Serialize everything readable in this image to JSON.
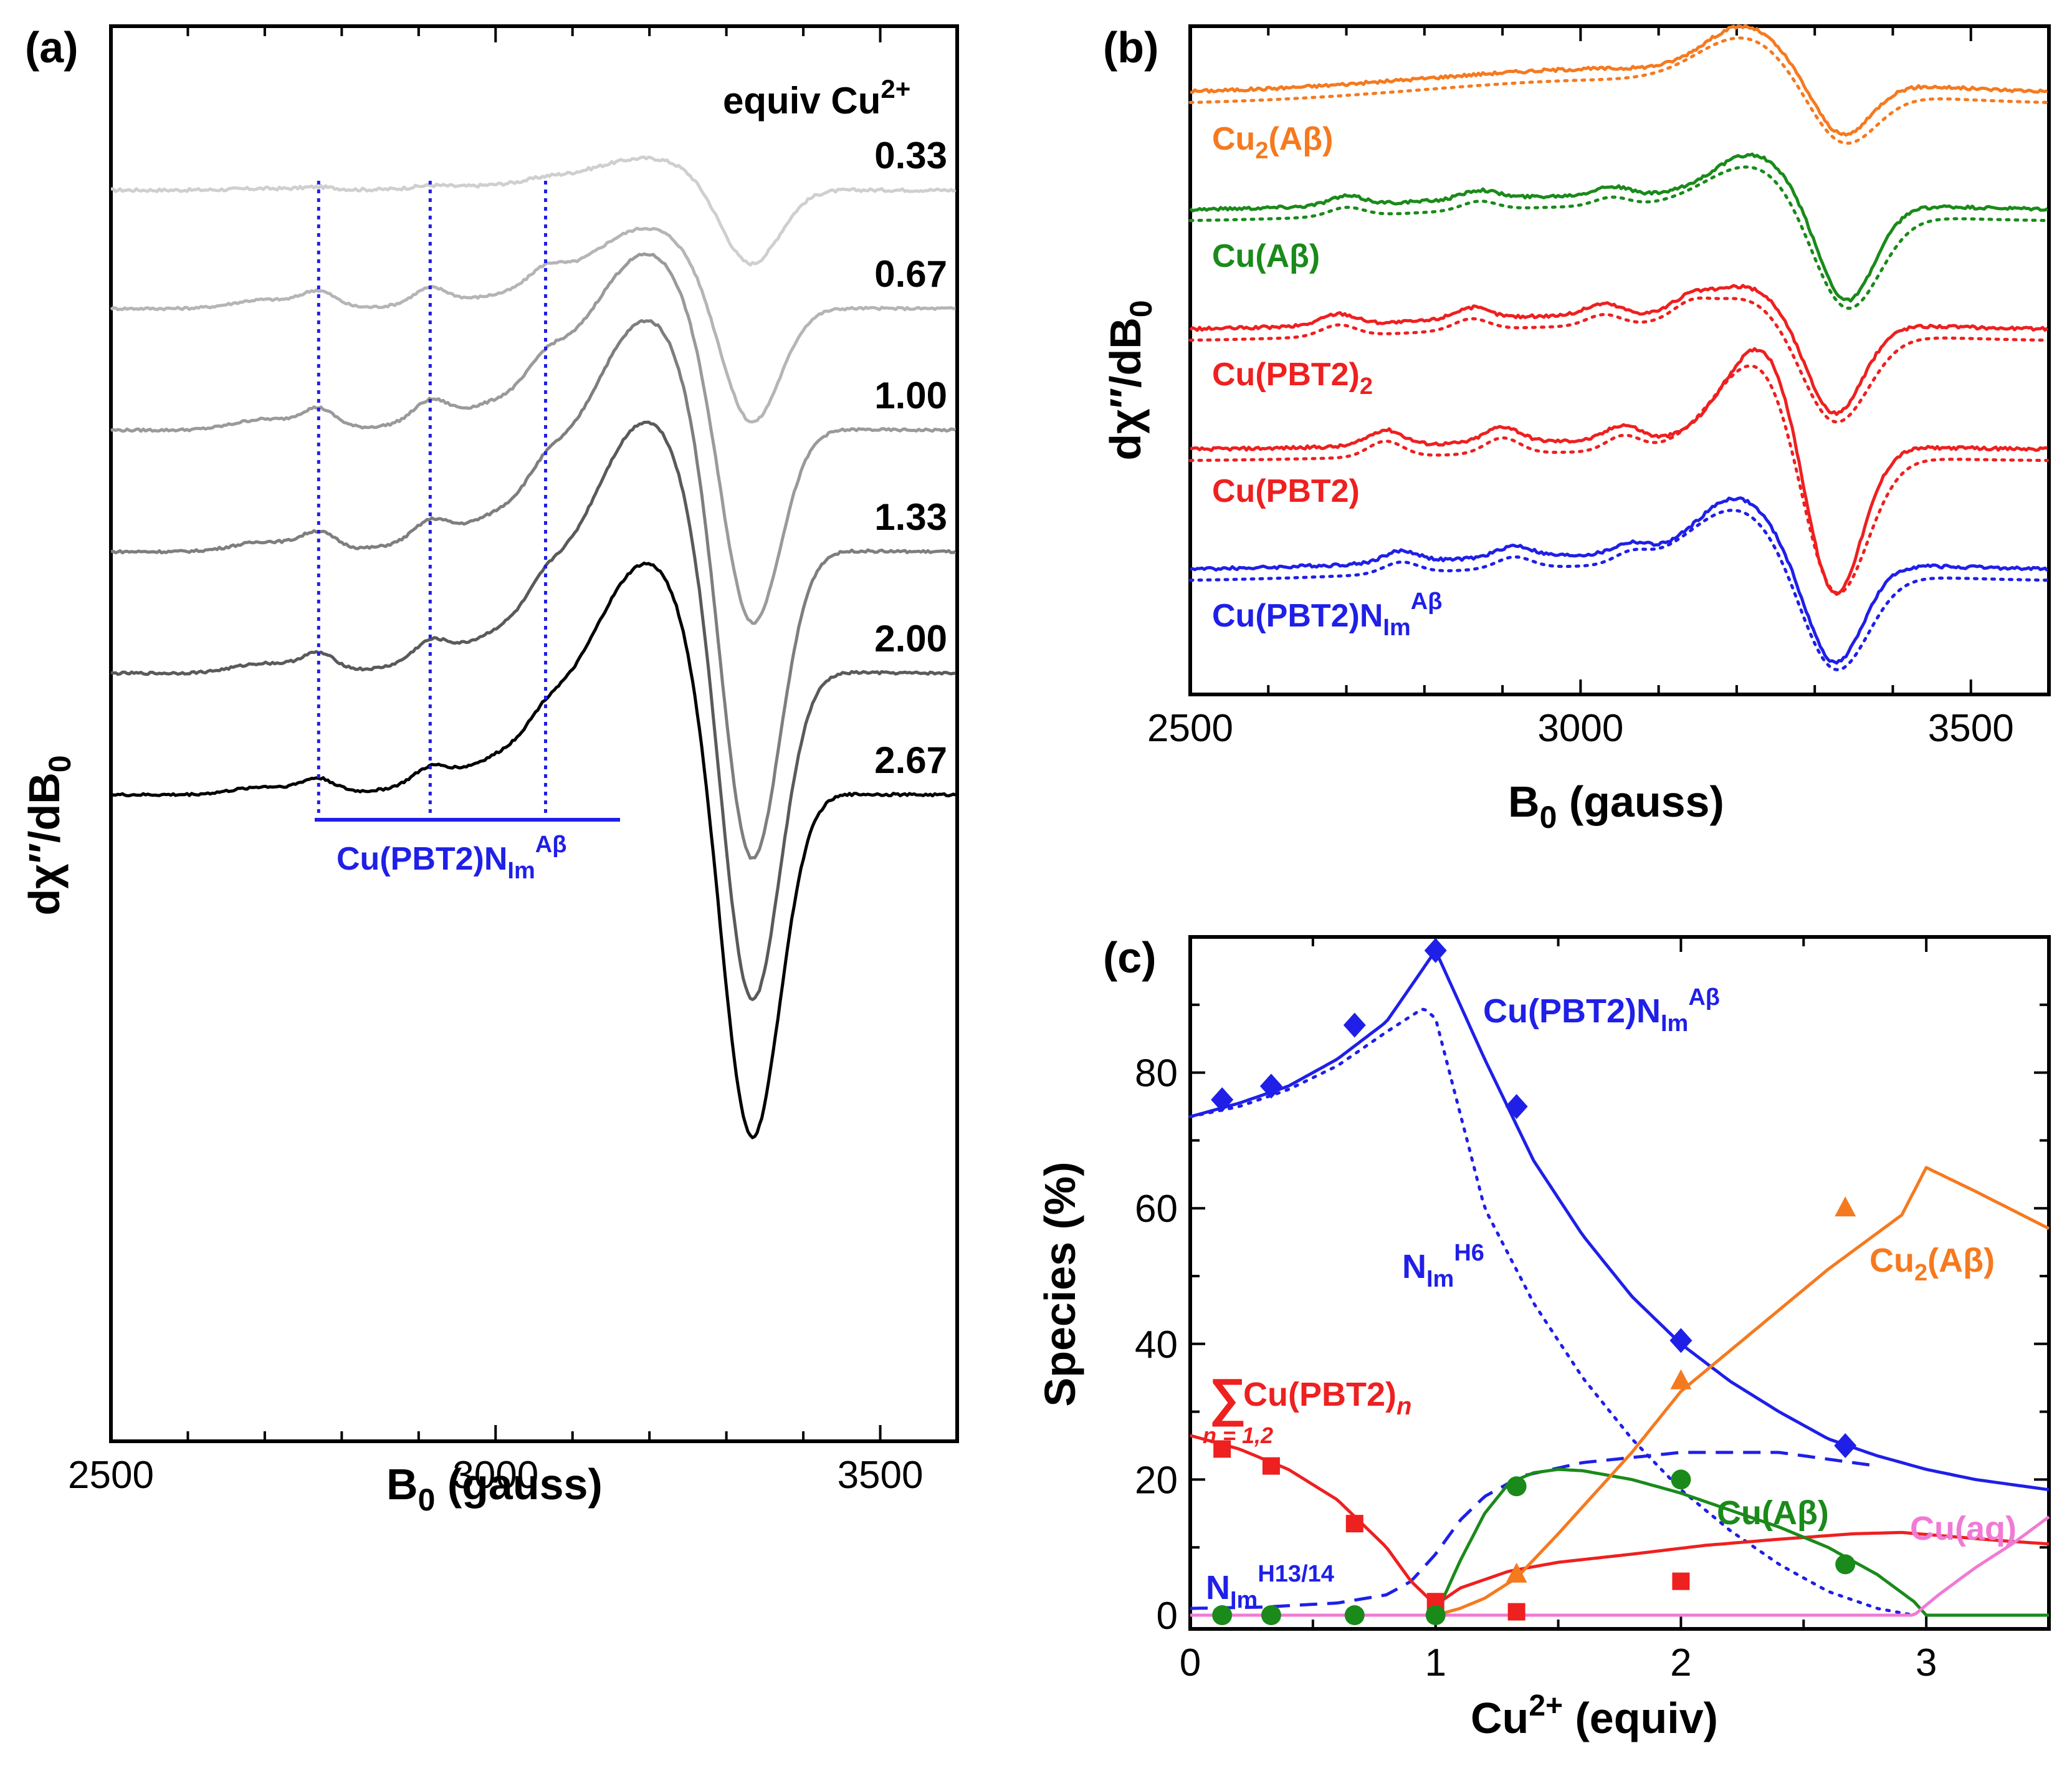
{
  "panels": {
    "a": {
      "panel_label": "(a)",
      "xlabel": "B",
      "xlabel_sub": "0",
      "xlabel_rest": " (gauss)",
      "ylabel": "dχ″/dB",
      "ylabel_sub": "0",
      "equiv_header": "equiv Cu",
      "equiv_header_sup": "2+",
      "species_label": "Cu(PBT2)N",
      "species_label_sub": "Im",
      "species_label_sup": "Aβ"
    },
    "b": {
      "panel_label": "(b)",
      "xlabel": "B",
      "xlabel_sub": "0",
      "xlabel_rest": " (gauss)",
      "ylabel": "dχ″/dB",
      "ylabel_sub": "0"
    },
    "c": {
      "panel_label": "(c)",
      "xlabel": "Cu",
      "xlabel_sup": "2+",
      "xlabel_rest": " (equiv)",
      "ylabel": "Species (%)",
      "sum_symbol": "∑",
      "sum_main": "Cu(PBT2)",
      "sum_sub_n": "n",
      "sum_limits": "n = 1,2",
      "nim_h6": "N",
      "nim_h6_sub": "Im",
      "nim_h6_sup": "H6",
      "nim_h13": "N",
      "nim_h13_sub": "Im",
      "nim_h13_sup": "H13/14",
      "cupbt2nim": "Cu(PBT2)N",
      "cupbt2nim_sub": "Im",
      "cupbt2nim_sup": "Aβ",
      "cu2ab": "Cu",
      "cu2ab_sub": "2",
      "cu2ab_rest": "(Aβ)",
      "cuab": "Cu(Aβ)",
      "cuaq": "Cu(aq)"
    }
  },
  "colors": {
    "blue": "#1f1fe8",
    "red": "#ee2020",
    "green": "#1a8a1a",
    "orange": "#f57a1f",
    "pink": "#f07ad6"
  },
  "chart_data": [
    {
      "id": "a",
      "type": "line",
      "title": "",
      "xlabel": "B0 (gauss)",
      "ylabel": "dχ″/dB0",
      "xlim": [
        2500,
        3600
      ],
      "xticks": [
        2500,
        3000,
        3500
      ],
      "series_labels": [
        "0.33",
        "0.67",
        "1.00",
        "1.33",
        "2.00",
        "2.67"
      ],
      "series_colors": [
        "#cfcfcf",
        "#b5b5b5",
        "#9a9a9a",
        "#7e7e7e",
        "#5a5a5a",
        "#000000"
      ],
      "marker_fields": [
        2770,
        2915,
        3065
      ],
      "series_shape": [
        {
          "name": "0.33",
          "baseline": 0.8,
          "hf": 0.12,
          "peak": 0.5,
          "trough": 1.6,
          "tail": 0.8
        },
        {
          "name": "0.67",
          "baseline": 1.54,
          "hf": 0.9,
          "peak": 1.6,
          "trough": 3.3,
          "tail": 1.54
        },
        {
          "name": "1.00",
          "baseline": 2.33,
          "hf": 1.1,
          "peak": 3.5,
          "trough": 5.8,
          "tail": 2.33
        },
        {
          "name": "1.33",
          "baseline": 3.09,
          "hf": 1.0,
          "peak": 4.6,
          "trough": 9.0,
          "tail": 3.09
        },
        {
          "name": "2.00",
          "baseline": 3.84,
          "hf": 1.0,
          "peak": 5.0,
          "trough": 9.6,
          "tail": 3.84
        },
        {
          "name": "2.67",
          "baseline": 4.61,
          "hf": 0.8,
          "peak": 4.6,
          "trough": 9.9,
          "tail": 4.61
        }
      ]
    },
    {
      "id": "b",
      "type": "line",
      "title": "",
      "xlabel": "B0 (gauss)",
      "ylabel": "dχ″/dB0",
      "xlim": [
        2500,
        3600
      ],
      "xticks": [
        2500,
        3000,
        3500
      ],
      "series": [
        {
          "name": "Cu2(Aβ)",
          "color": "#f57a1f",
          "style": "solid + dotted fit"
        },
        {
          "name": "Cu(Aβ)",
          "color": "#1a8a1a",
          "style": "solid + dotted fit"
        },
        {
          "name": "Cu(PBT2)2",
          "color": "#ee2020",
          "style": "solid + dotted fit"
        },
        {
          "name": "Cu(PBT2)",
          "color": "#ee2020",
          "style": "solid + dotted fit"
        },
        {
          "name": "Cu(PBT2)NImAβ",
          "color": "#1f1fe8",
          "style": "solid + dotted fit"
        }
      ]
    },
    {
      "id": "c",
      "type": "scatter",
      "title": "",
      "xlabel": "Cu2+ (equiv)",
      "ylabel": "Species (%)",
      "xlim": [
        0,
        3.5
      ],
      "ylim": [
        0,
        100
      ],
      "xticks": [
        0,
        1,
        2,
        3
      ],
      "yticks": [
        0,
        20,
        40,
        60,
        80
      ],
      "points": [
        {
          "name": "Cu(PBT2)NImAβ",
          "marker": "diamond",
          "color": "#1f1fe8",
          "x": [
            0.13,
            0.33,
            0.67,
            1.0,
            1.33,
            2.0,
            2.67
          ],
          "y": [
            76,
            78,
            87,
            98,
            75,
            40.5,
            25
          ]
        },
        {
          "name": "ΣCu(PBT2)n",
          "marker": "square",
          "color": "#ee2020",
          "x": [
            0.13,
            0.33,
            0.67,
            1.0,
            1.33,
            2.0
          ],
          "y": [
            24.5,
            22,
            13.5,
            2,
            0.5,
            5
          ]
        },
        {
          "name": "Cu(Aβ)",
          "marker": "circle",
          "color": "#1a8a1a",
          "x": [
            0.13,
            0.33,
            0.67,
            1.0,
            1.33,
            2.0,
            2.67
          ],
          "y": [
            0,
            0,
            0,
            0,
            19,
            20,
            7.5
          ]
        },
        {
          "name": "Cu2(Aβ)",
          "marker": "triangle",
          "color": "#f57a1f",
          "x": [
            1.33,
            2.0,
            2.67
          ],
          "y": [
            6,
            34.5,
            60
          ]
        }
      ],
      "curves": [
        {
          "name": "Cu(PBT2)NImAβ fit",
          "color": "#1f1fe8",
          "style": "solid",
          "x": [
            0,
            0.2,
            0.4,
            0.6,
            0.8,
            1.0,
            1.2,
            1.4,
            1.6,
            1.8,
            2.0,
            2.2,
            2.4,
            2.6,
            2.8,
            3.0,
            3.2,
            3.5
          ],
          "y": [
            73.5,
            75.5,
            78,
            82,
            87.5,
            98,
            82,
            67,
            56,
            47,
            40,
            34.5,
            30,
            26,
            23.5,
            21.5,
            20,
            18.5
          ]
        },
        {
          "name": "NImH6",
          "color": "#1f1fe8",
          "style": "dotted",
          "x": [
            0,
            0.2,
            0.4,
            0.6,
            0.8,
            0.95,
            1.0,
            1.1,
            1.2,
            1.4,
            1.6,
            1.8,
            2.0,
            2.2,
            2.4,
            2.6,
            2.8,
            2.95
          ],
          "y": [
            73.5,
            75,
            77.5,
            81,
            86,
            89.5,
            88,
            74,
            60,
            46,
            35,
            26,
            18.5,
            12.5,
            7.5,
            3.5,
            1,
            0
          ]
        },
        {
          "name": "NImH13/14",
          "color": "#1f1fe8",
          "style": "dashed",
          "x": [
            0,
            0.3,
            0.6,
            0.8,
            0.9,
            1.0,
            1.1,
            1.2,
            1.35,
            1.6,
            2.0,
            2.4,
            2.8
          ],
          "y": [
            1,
            1.2,
            1.8,
            3,
            5,
            9,
            14,
            17.5,
            20.5,
            22.5,
            24,
            24,
            22
          ]
        },
        {
          "name": "ΣCu(PBT2)n fit",
          "color": "#ee2020",
          "style": "solid",
          "x": [
            0,
            0.2,
            0.4,
            0.6,
            0.8,
            0.9,
            1.0,
            1.1,
            1.3,
            1.5,
            1.8,
            2.1,
            2.4,
            2.7,
            2.9,
            3.1,
            3.3,
            3.5
          ],
          "y": [
            26.5,
            24.5,
            21.5,
            17,
            10,
            5,
            1.5,
            4,
            6.5,
            7.8,
            9,
            10.3,
            11.2,
            12,
            12.2,
            11.6,
            11,
            10.5
          ]
        },
        {
          "name": "Cu(Aβ) fit",
          "color": "#1a8a1a",
          "style": "solid",
          "x": [
            1.0,
            1.1,
            1.2,
            1.3,
            1.4,
            1.5,
            1.6,
            1.8,
            2.0,
            2.2,
            2.4,
            2.6,
            2.8,
            2.95,
            3.0,
            3.5
          ],
          "y": [
            0,
            8,
            15,
            19.5,
            21,
            21.5,
            21.3,
            20,
            18,
            15.5,
            13,
            10,
            6,
            2,
            0,
            0
          ]
        },
        {
          "name": "Cu2(Aβ) fit",
          "color": "#f57a1f",
          "style": "solid",
          "x": [
            1.0,
            1.1,
            1.2,
            1.33,
            1.5,
            1.8,
            2.0,
            2.3,
            2.6,
            2.9,
            3.0,
            3.2,
            3.5
          ],
          "y": [
            0,
            1,
            2.5,
            5.5,
            12,
            24,
            33,
            42,
            51,
            59,
            66,
            62.5,
            57
          ]
        },
        {
          "name": "Cu(aq)",
          "color": "#f07ad6",
          "style": "solid",
          "x": [
            0,
            1.0,
            2.0,
            2.95,
            3.05,
            3.2,
            3.35,
            3.5
          ],
          "y": [
            0,
            0,
            0,
            0,
            3,
            7,
            10.5,
            14.5
          ]
        }
      ]
    }
  ]
}
